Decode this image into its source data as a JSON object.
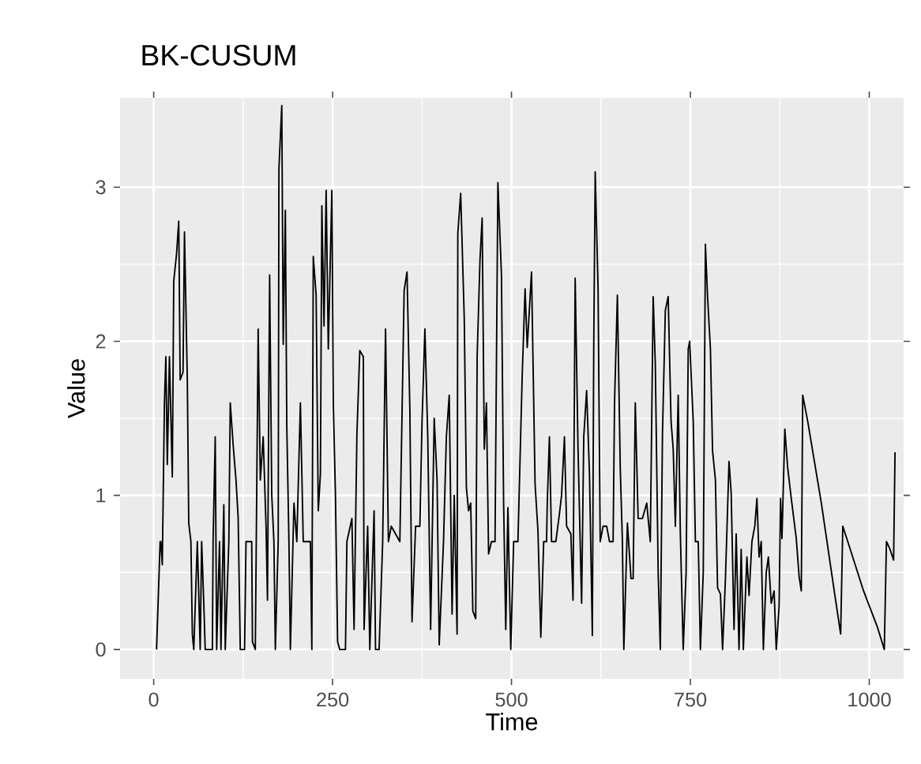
{
  "chart_data": {
    "type": "line",
    "title": "BK-CUSUM",
    "xlabel": "Time",
    "ylabel": "Value",
    "color": "#000000",
    "grid": true,
    "xlim": [
      -47,
      1048
    ],
    "ylim": [
      -0.19,
      3.58
    ],
    "xticks": [
      0,
      250,
      500,
      750,
      1000
    ],
    "yticks": [
      0,
      1,
      2,
      3
    ],
    "x": [
      4,
      9,
      10,
      12,
      15,
      17,
      19,
      22,
      26,
      28,
      32,
      35,
      37,
      41,
      43,
      47,
      49,
      52,
      54,
      56,
      61,
      65,
      67,
      70,
      72,
      82,
      83,
      86,
      88,
      92,
      94,
      98,
      100,
      105,
      107,
      111,
      115,
      118,
      121,
      127,
      129,
      137,
      138,
      142,
      146,
      149,
      153,
      157,
      159,
      162,
      165,
      168,
      170,
      174,
      175,
      179,
      181,
      184,
      186,
      189,
      191,
      196,
      200,
      205,
      209,
      219,
      221,
      223,
      227,
      230,
      233,
      235,
      238,
      241,
      244,
      249,
      251,
      254,
      257,
      260,
      268,
      270,
      277,
      280,
      284,
      288,
      293,
      294,
      299,
      302,
      308,
      310,
      315,
      320,
      324,
      328,
      332,
      344,
      350,
      354,
      358,
      361,
      366,
      372,
      375,
      379,
      383,
      387,
      392,
      396,
      399,
      405,
      409,
      413,
      417,
      420,
      424,
      425,
      429,
      434,
      437,
      440,
      443,
      446,
      450,
      452,
      456,
      459,
      462,
      465,
      468,
      472,
      477,
      481,
      486,
      489,
      492,
      495,
      499,
      503,
      509,
      512,
      515,
      519,
      522,
      528,
      533,
      537,
      541,
      545,
      549,
      550,
      553,
      556,
      562,
      567,
      570,
      574,
      577,
      583,
      586,
      589,
      593,
      598,
      601,
      605,
      609,
      613,
      615,
      617,
      621,
      624,
      628,
      633,
      637,
      642,
      644,
      648,
      652,
      655,
      657,
      662,
      667,
      670,
      673,
      677,
      683,
      689,
      694,
      698,
      701,
      705,
      708,
      711,
      715,
      719,
      723,
      726,
      729,
      733,
      736,
      740,
      744,
      747,
      749,
      754,
      757,
      761,
      764,
      768,
      771,
      774,
      778,
      781,
      785,
      788,
      792,
      795,
      799,
      804,
      807,
      811,
      814,
      818,
      821,
      824,
      829,
      832,
      836,
      840,
      843,
      846,
      849,
      852,
      856,
      859,
      863,
      867,
      870,
      874,
      876,
      878,
      882,
      886,
      891,
      898,
      902,
      905,
      907,
      914,
      933,
      952,
      960,
      963,
      970,
      992,
      1011,
      1021,
      1024,
      1029,
      1034,
      1036
    ],
    "values": [
      0,
      0.7,
      0.7,
      0.55,
      1.6,
      1.9,
      1.2,
      1.9,
      1.12,
      2.39,
      2.57,
      2.78,
      1.75,
      1.8,
      2.71,
      1.75,
      0.82,
      0.7,
      0.1,
      0,
      0.7,
      0,
      0.7,
      0.3,
      0,
      0,
      0.7,
      1.38,
      0,
      0.7,
      0,
      0.94,
      0,
      0.7,
      1.6,
      1.33,
      1.1,
      0.86,
      0,
      0,
      0.7,
      0.7,
      0.05,
      0,
      2.08,
      1.1,
      1.38,
      0.8,
      0.32,
      2.43,
      1,
      0.7,
      0,
      0.7,
      3.12,
      3.53,
      1.98,
      2.85,
      1.45,
      0.7,
      0,
      0.95,
      0.7,
      1.6,
      0.7,
      0.7,
      0,
      2.55,
      2.3,
      0.9,
      1.14,
      2.88,
      2.1,
      2.98,
      1.95,
      2.98,
      1.6,
      1,
      0.05,
      0,
      0,
      0.7,
      0.85,
      0.13,
      1.4,
      1.94,
      1.9,
      0.13,
      0.8,
      0,
      0.9,
      0,
      0,
      0.7,
      2.08,
      0.7,
      0.8,
      0.7,
      2.33,
      2.45,
      1.55,
      0.18,
      0.8,
      0.8,
      1.48,
      2.08,
      1.38,
      0.13,
      1.5,
      1.1,
      0.03,
      0.7,
      1.38,
      1.65,
      0.23,
      1,
      0.1,
      2.7,
      2.96,
      2.15,
      1.05,
      0.9,
      0.95,
      0.25,
      0.2,
      1.9,
      2.53,
      2.8,
      1.3,
      1.6,
      0.62,
      0.7,
      0.7,
      3.03,
      2.43,
      0.95,
      0.13,
      0.92,
      0,
      0.7,
      0.7,
      1.24,
      1.78,
      2.34,
      1.96,
      2.45,
      1.07,
      0.77,
      0.08,
      0.7,
      0.7,
      0.95,
      1.38,
      0.7,
      0.7,
      0.88,
      1,
      1.38,
      0.8,
      0.75,
      0.32,
      2.41,
      1.3,
      0.3,
      1.38,
      1.68,
      1.14,
      0.09,
      2,
      3.1,
      2.34,
      0.7,
      0.8,
      0.8,
      0.7,
      0.7,
      1.6,
      2.3,
      1.18,
      0.7,
      0,
      0.82,
      0.46,
      0.46,
      1.6,
      0.85,
      0.85,
      0.95,
      0.7,
      2.29,
      1.85,
      0.5,
      0,
      1.4,
      2.2,
      2.29,
      1.48,
      1.3,
      0.8,
      1.65,
      0.75,
      0,
      0.5,
      1.95,
      2,
      1.48,
      0.7,
      0.7,
      0,
      0.5,
      2.63,
      2.29,
      1.95,
      1.29,
      1.1,
      0.4,
      0.36,
      0,
      0.46,
      1.22,
      1.02,
      0.13,
      0.75,
      0,
      0.65,
      0,
      0.6,
      0.35,
      0.7,
      0.8,
      0.98,
      0.6,
      0.7,
      0,
      0.5,
      0.6,
      0.3,
      0.38,
      0,
      0.28,
      0.98,
      0.72,
      1.43,
      1.18,
      0.98,
      0.72,
      0.47,
      0.38,
      1.65,
      1.48,
      0.95,
      0.35,
      0.1,
      0.8,
      0.7,
      0.38,
      0.15,
      0,
      0.7,
      0.65,
      0.58,
      1.28
    ]
  }
}
